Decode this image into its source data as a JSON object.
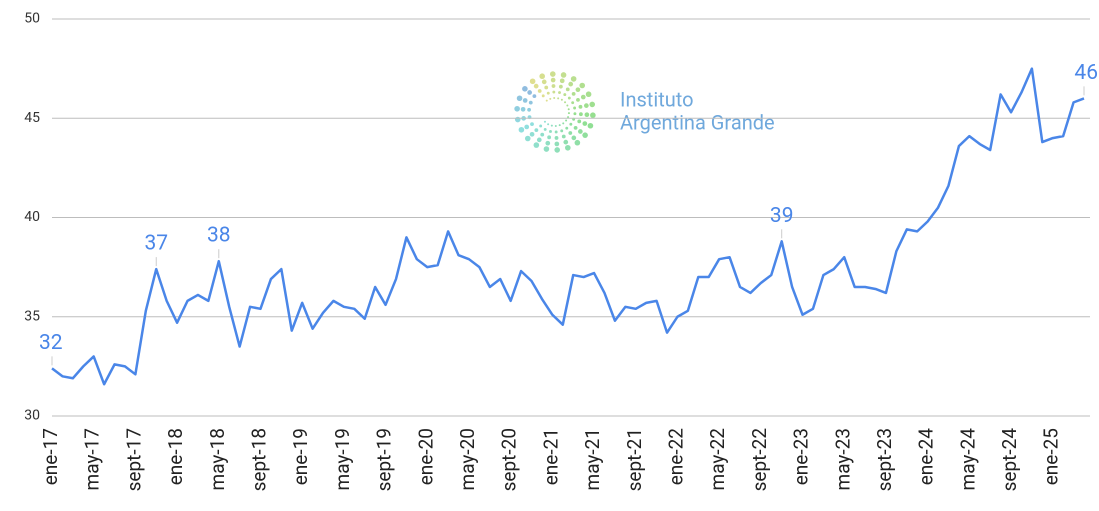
{
  "chart_data": {
    "type": "line",
    "watermark": [
      "Instituto",
      "Argentina Grande"
    ],
    "categories": [
      "ene-17",
      null,
      null,
      null,
      "may-17",
      null,
      null,
      null,
      "sept-17",
      null,
      null,
      null,
      "ene-18",
      null,
      null,
      null,
      "may-18",
      null,
      null,
      null,
      "sept-18",
      null,
      null,
      null,
      "ene-19",
      null,
      null,
      null,
      "may-19",
      null,
      null,
      null,
      "sept-19",
      null,
      null,
      null,
      "ene-20",
      null,
      null,
      null,
      "may-20",
      null,
      null,
      null,
      "sept-20",
      null,
      null,
      null,
      "ene-21",
      null,
      null,
      null,
      "may-21",
      null,
      null,
      null,
      "sept-21",
      null,
      null,
      null,
      "ene-22",
      null,
      null,
      null,
      "may-22",
      null,
      null,
      null,
      "sept-22",
      null,
      null,
      null,
      "ene-23",
      null,
      null,
      null,
      "may-23",
      null,
      null,
      null,
      "sept-23",
      null,
      null,
      null,
      "ene-24",
      null,
      null,
      null,
      "may-24",
      null,
      null,
      null,
      "sept-24",
      null,
      null,
      null,
      "ene-25",
      null,
      null,
      null
    ],
    "series": [
      {
        "name": null,
        "color": "#4a86e8",
        "values": [
          32.4,
          32.0,
          31.9,
          32.5,
          33.0,
          31.6,
          32.6,
          32.5,
          32.1,
          35.3,
          37.4,
          35.8,
          34.7,
          35.8,
          36.1,
          35.8,
          37.8,
          35.5,
          33.5,
          35.5,
          35.4,
          36.9,
          37.4,
          34.3,
          35.7,
          34.4,
          35.2,
          35.8,
          35.5,
          35.4,
          34.9,
          36.5,
          35.6,
          36.9,
          39.0,
          37.9,
          37.5,
          37.6,
          39.3,
          38.1,
          37.9,
          37.5,
          36.5,
          36.9,
          35.8,
          37.3,
          36.8,
          35.9,
          35.1,
          34.6,
          37.1,
          37.0,
          37.2,
          36.2,
          34.8,
          35.5,
          35.4,
          35.7,
          35.8,
          34.2,
          35.0,
          35.3,
          37.0,
          37.0,
          37.9,
          38.0,
          36.5,
          36.2,
          36.7,
          37.1,
          38.8,
          36.5,
          35.1,
          35.4,
          37.1,
          37.4,
          38.0,
          36.5,
          36.5,
          36.4,
          36.2,
          38.3,
          39.4,
          39.3,
          39.8,
          40.5,
          41.6,
          43.6,
          44.1,
          43.7,
          43.4,
          46.2,
          45.3,
          46.3,
          47.5,
          43.8,
          44.0,
          44.1,
          45.8,
          46.0
        ],
        "value_labels": [
          "32",
          null,
          null,
          null,
          null,
          null,
          null,
          null,
          null,
          null,
          "37",
          null,
          null,
          null,
          null,
          null,
          "38",
          null,
          null,
          null,
          null,
          null,
          null,
          null,
          null,
          null,
          null,
          null,
          null,
          null,
          null,
          null,
          null,
          null,
          null,
          null,
          null,
          null,
          null,
          null,
          null,
          null,
          null,
          null,
          null,
          null,
          null,
          null,
          null,
          null,
          null,
          null,
          null,
          null,
          null,
          null,
          null,
          null,
          null,
          null,
          null,
          null,
          null,
          null,
          null,
          null,
          null,
          null,
          null,
          null,
          "39",
          null,
          null,
          null,
          null,
          null,
          null,
          null,
          null,
          null,
          null,
          null,
          null,
          null,
          null,
          null,
          null,
          null,
          null,
          null,
          null,
          null,
          null,
          null,
          null,
          null,
          null,
          null,
          null,
          "46"
        ]
      }
    ],
    "ylim": [
      30,
      50
    ],
    "yticks": [
      30,
      35,
      40,
      45,
      50
    ],
    "grid": true
  }
}
